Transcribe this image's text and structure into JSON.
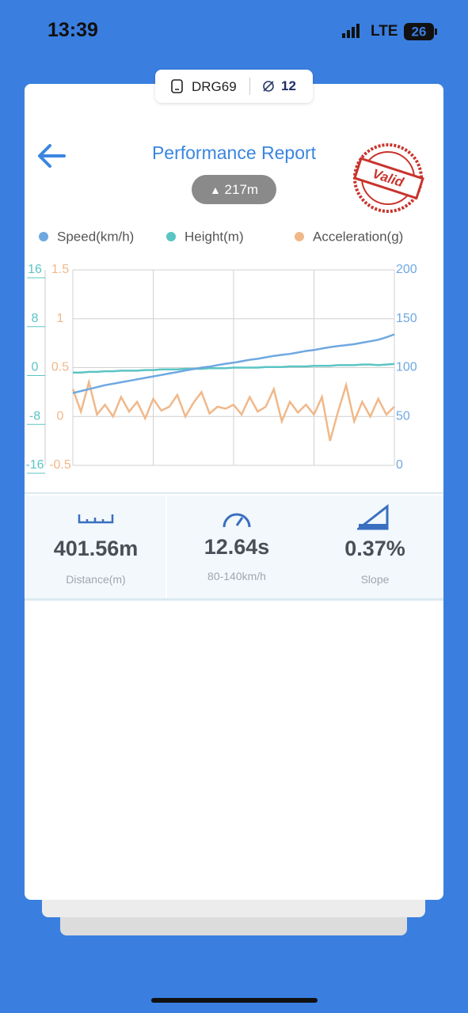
{
  "status_bar": {
    "time": "13:39",
    "network": "LTE",
    "battery": "26"
  },
  "badge": {
    "device": "DRG69",
    "satellites": "12"
  },
  "header": {
    "title": "Performance Report",
    "altitude": "217m",
    "stamp": "Valid"
  },
  "chart_data": {
    "type": "line",
    "ylim": [
      -16,
      16
    ],
    "yticks": [
      16,
      8,
      0,
      -8,
      -16
    ],
    "y3lim": [
      -0.5,
      1.5
    ],
    "y3ticks": [
      1.5,
      1,
      0.5,
      0,
      -0.5
    ],
    "y2lim": [
      0,
      200
    ],
    "y2ticks": [
      200,
      150,
      100,
      50,
      0
    ],
    "grid": true,
    "series": [
      {
        "name": "Speed(km/h)",
        "color": "#6fa8e0",
        "axis": "y2",
        "values": [
          74,
          76,
          78,
          80,
          82,
          83.5,
          85,
          86.5,
          88,
          89.5,
          91,
          92.5,
          94,
          95.5,
          97,
          98.5,
          100,
          101,
          102.5,
          104,
          105,
          106.5,
          108,
          109,
          110.5,
          112,
          113,
          114,
          115.5,
          117,
          118,
          119.5,
          121,
          122,
          123,
          124,
          125.5,
          127,
          128.5,
          131,
          134
        ]
      },
      {
        "name": "Height(m)",
        "color": "#5bc4c4",
        "axis": "y",
        "values": [
          -0.8,
          -0.8,
          -0.7,
          -0.7,
          -0.6,
          -0.6,
          -0.5,
          -0.5,
          -0.5,
          -0.4,
          -0.4,
          -0.3,
          -0.3,
          -0.3,
          -0.2,
          -0.2,
          -0.2,
          -0.1,
          -0.1,
          -0.1,
          0,
          0,
          0,
          0,
          0.1,
          0.1,
          0.1,
          0.2,
          0.2,
          0.2,
          0.3,
          0.3,
          0.3,
          0.4,
          0.4,
          0.4,
          0.5,
          0.5,
          0.4,
          0.5,
          0.6
        ]
      },
      {
        "name": "Acceleration(g)",
        "color": "#f0b88a",
        "axis": "y3",
        "values": [
          0.28,
          0.05,
          0.35,
          0.02,
          0.12,
          0.0,
          0.2,
          0.05,
          0.15,
          -0.02,
          0.18,
          0.06,
          0.1,
          0.22,
          0.0,
          0.14,
          0.25,
          0.03,
          0.1,
          0.08,
          0.12,
          0.02,
          0.2,
          0.05,
          0.1,
          0.28,
          -0.05,
          0.15,
          0.04,
          0.12,
          0.02,
          0.2,
          -0.25,
          0.05,
          0.32,
          -0.05,
          0.15,
          0.0,
          0.18,
          0.02,
          0.1
        ]
      }
    ]
  },
  "stats": [
    {
      "value": "401.56m",
      "label": "Distance(m)"
    },
    {
      "value": "12.64s",
      "label": "80-140km/h"
    },
    {
      "value": "0.37%",
      "label": "Slope"
    }
  ]
}
